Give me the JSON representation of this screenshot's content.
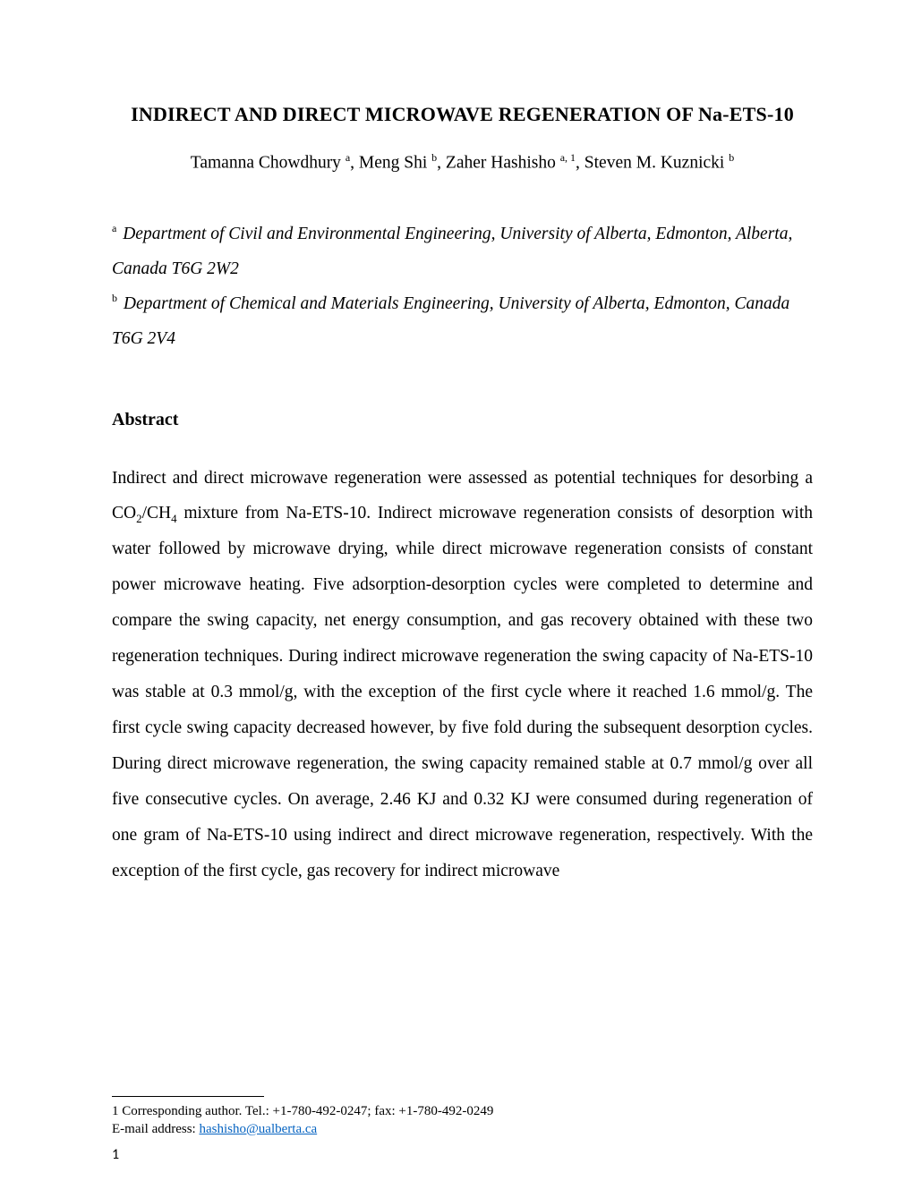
{
  "typography": {
    "font_family": "Times New Roman",
    "title_fontsize_pt": 16,
    "title_weight": "bold",
    "author_fontsize_pt": 15,
    "body_fontsize_pt": 15,
    "footnote_fontsize_pt": 11,
    "pagenum_fontsize_pt": 12,
    "line_height_body": 2.05,
    "text_color": "#000000",
    "link_color": "#0563c1",
    "background_color": "#ffffff"
  },
  "title": "INDIRECT AND DIRECT MICROWAVE REGENERATION OF Na-ETS-10",
  "authors": {
    "line_pre_a": "Tamanna Chowdhury ",
    "sup_a": "a",
    "sep1": ", Meng Shi ",
    "sup_b": "b",
    "sep2": ", Zaher Hashisho ",
    "sup_a1": "a, 1",
    "sep3": ", Steven M. Kuznicki ",
    "sup_b2": "b"
  },
  "affiliations": {
    "a_sup": "a",
    "a_text": " Department of Civil and Environmental Engineering, University of Alberta, Edmonton, Alberta, Canada T6G 2W2",
    "b_sup": "b",
    "b_text": " Department of Chemical and Materials Engineering, University of Alberta, Edmonton, Canada T6G 2V4"
  },
  "abstract_heading": "Abstract",
  "abstract": {
    "p1_a": "Indirect and direct microwave regeneration were assessed as potential techniques for desorbing a CO",
    "p1_sub1": "2",
    "p1_b": "/CH",
    "p1_sub2": "4",
    "p1_c": " mixture from Na-ETS-10. Indirect microwave regeneration consists of desorption with water followed by microwave drying, while direct microwave regeneration consists of constant power microwave heating. Five adsorption-desorption cycles were completed to determine and compare the swing capacity, net energy consumption, and gas recovery obtained with these two regeneration techniques. During indirect microwave regeneration the swing capacity of Na-ETS-10 was stable at 0.3 mmol/g, with the exception of the first cycle where it reached 1.6 mmol/g. The first cycle swing capacity decreased however, by five fold during the subsequent desorption cycles. During direct microwave regeneration, the swing capacity remained stable at 0.7 mmol/g over all five consecutive cycles. On average, 2.46 KJ and 0.32 KJ were consumed during regeneration of one gram of Na-ETS-10 using indirect and direct microwave regeneration, respectively. With the exception of the first cycle, gas recovery for indirect microwave"
  },
  "footnotes": {
    "line1_marker": "1",
    "line1_text": " Corresponding author. Tel.: +1-780-492-0247; fax: +1-780-492-0249",
    "line2_label": "E-mail address: ",
    "line2_email": "hashisho@ualberta.ca"
  },
  "page_number": "1"
}
